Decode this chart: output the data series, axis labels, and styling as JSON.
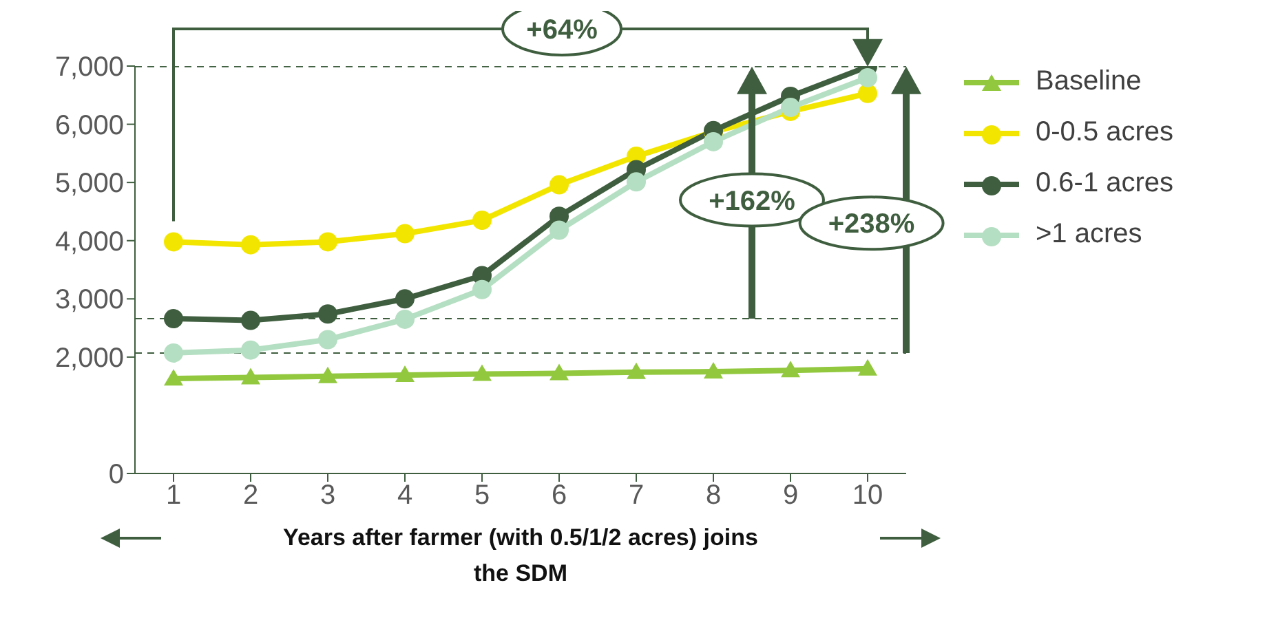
{
  "chart_data": {
    "type": "line",
    "xlabel": "Years after farmer (with 0.5/1/2 acres) joins the SDM",
    "categories": [
      "1",
      "2",
      "3",
      "4",
      "5",
      "6",
      "7",
      "8",
      "9",
      "10"
    ],
    "series": [
      {
        "name": "Baseline",
        "color": "#92c83e",
        "marker": "triangle",
        "values": [
          1630,
          1650,
          1670,
          1690,
          1710,
          1720,
          1740,
          1750,
          1770,
          1800
        ]
      },
      {
        "name": "0-0.5 acres",
        "color": "#f2e600",
        "marker": "circle",
        "values": [
          3980,
          3930,
          3980,
          4120,
          4350,
          4960,
          5450,
          5870,
          6220,
          6530
        ]
      },
      {
        "name": "0.6-1 acres",
        "color": "#3f5e3f",
        "marker": "circle",
        "values": [
          2660,
          2630,
          2740,
          3000,
          3400,
          4420,
          5220,
          5890,
          6480,
          6990
        ]
      },
      {
        "name": ">1 acres",
        "color": "#b5dfc2",
        "marker": "circle",
        "values": [
          2070,
          2120,
          2300,
          2650,
          3160,
          4180,
          5010,
          5700,
          6290,
          6800
        ]
      }
    ],
    "ylim": [
      0,
      7000
    ],
    "yticks": [
      0,
      {
        "value": 2000,
        "label": "2,000"
      },
      {
        "value": 3000,
        "label": "3,000"
      },
      {
        "value": 4000,
        "label": "4,000"
      },
      {
        "value": 5000,
        "label": "5,000"
      },
      {
        "value": 6000,
        "label": "6,000"
      },
      {
        "value": 7000,
        "label": "7,000"
      }
    ],
    "ref_lines": [
      {
        "axis": "y",
        "value": 6990,
        "color": "#3f5e3f",
        "line_style": "dashed"
      },
      {
        "axis": "y",
        "value": 2660,
        "color": "#3f5e3f",
        "line_style": "dashed"
      },
      {
        "axis": "y",
        "value": 2070,
        "color": "#3f5e3f",
        "line_style": "dashed"
      }
    ],
    "annotations": [
      "+64%",
      "+162%",
      "+238%"
    ],
    "grid": false,
    "legend": "right"
  }
}
